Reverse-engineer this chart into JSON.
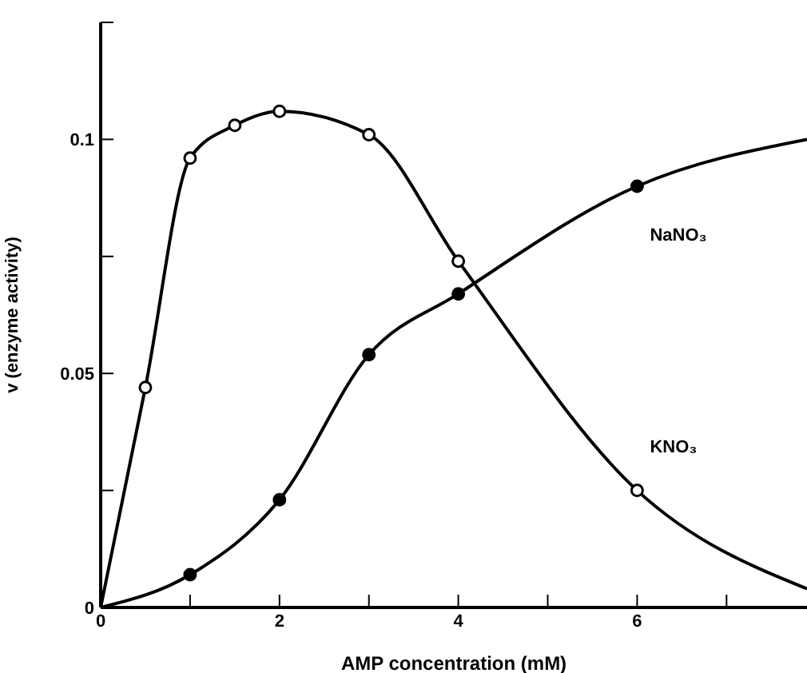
{
  "chart_data": {
    "type": "line",
    "xlabel": "AMP concentration (mM)",
    "ylabel": "v (enzyme activity)",
    "xlim": [
      0,
      7.9
    ],
    "xticks": [
      0,
      {
        "value": 1,
        "label": null
      },
      2,
      {
        "value": 3,
        "label": null
      },
      4,
      {
        "value": 5,
        "label": null
      },
      6,
      {
        "value": 7,
        "label": null
      }
    ],
    "ylim": [
      0,
      0.125
    ],
    "yticks": [
      0,
      {
        "value": 0.025,
        "label": null
      },
      0.05,
      {
        "value": 0.075,
        "label": null
      },
      0.1,
      {
        "value": 0.125,
        "label": null
      }
    ],
    "grid": false,
    "legend": false,
    "marker": "circle",
    "line_style": "solid",
    "series": [
      {
        "name": "KNO₃",
        "color": "#000000",
        "x": [
          0,
          0.5,
          1,
          1.5,
          2,
          3,
          4,
          6,
          7.9
        ],
        "values": [
          0,
          0.047,
          0.096,
          0.103,
          0.106,
          0.101,
          0.074,
          0.025,
          0.004
        ]
      },
      {
        "name": "NaNO₃",
        "color": "#000000",
        "x": [
          0,
          1,
          2,
          3,
          4,
          6,
          7.9
        ],
        "values": [
          0,
          0.007,
          0.023,
          0.054,
          0.067,
          0.09,
          0.1
        ]
      }
    ]
  }
}
